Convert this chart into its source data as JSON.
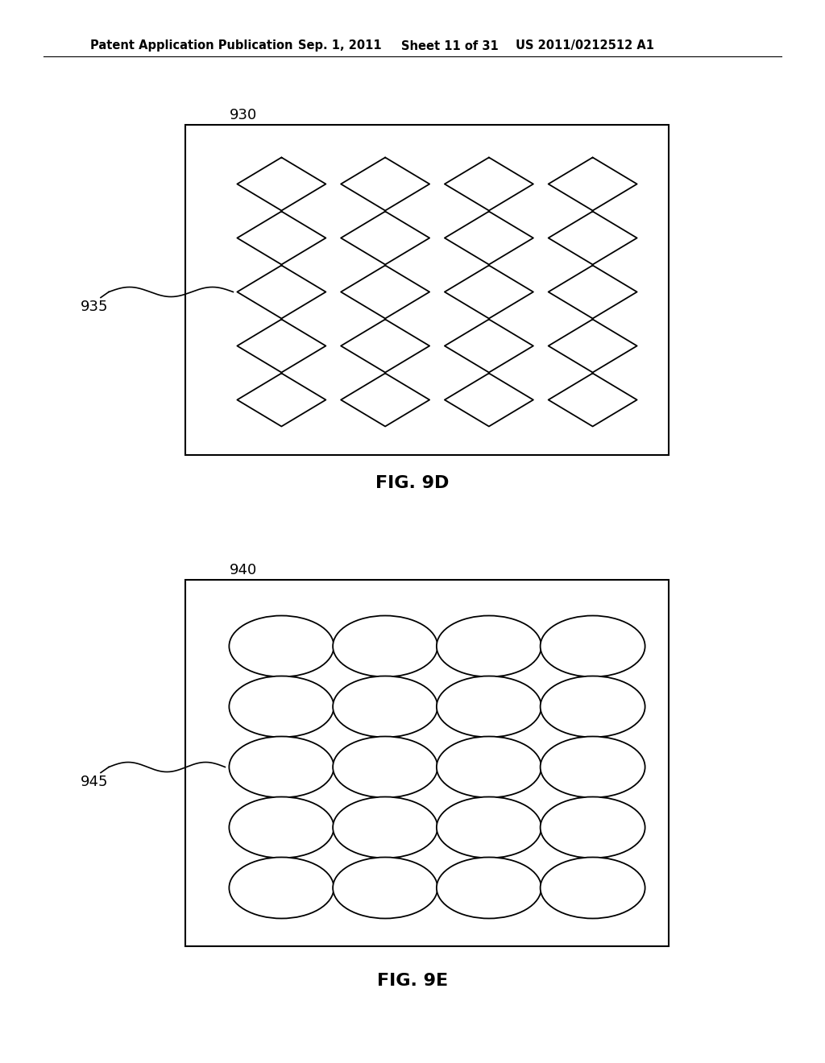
{
  "bg_color": "#ffffff",
  "header_text": "Patent Application Publication",
  "header_date": "Sep. 1, 2011",
  "header_sheet": "Sheet 11 of 31",
  "header_patent": "US 2011/0212512 A1",
  "header_fontsize": 10.5,
  "fig9d_label": "930",
  "fig9d_caption": "FIG. 9D",
  "fig9d_item_label": "935",
  "fig9e_label": "940",
  "fig9e_caption": "FIG. 9E",
  "fig9e_item_label": "945",
  "grid_rows": 5,
  "grid_cols": 4,
  "line_color": "#000000",
  "line_width": 1.3,
  "caption_fontsize": 16,
  "label_fontsize": 13
}
